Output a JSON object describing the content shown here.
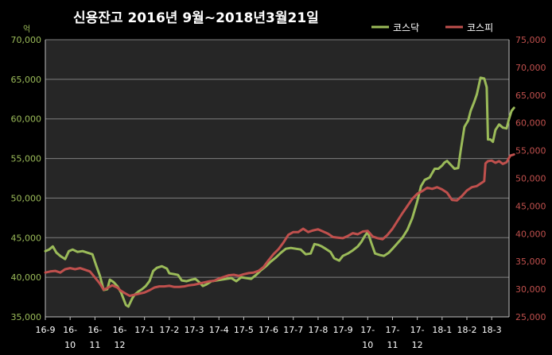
{
  "chart_data": {
    "type": "line",
    "title": "신용잔고 2016년 9월~2018년3월21일",
    "y_unit_label": "억",
    "legend_position": "top-right",
    "grid": true,
    "ylim_left": [
      35000,
      70000
    ],
    "ylim_right": [
      25000,
      75000
    ],
    "yticks_left": [
      "35,000",
      "40,000",
      "45,000",
      "50,000",
      "55,000",
      "60,000",
      "65,000",
      "70,000"
    ],
    "yticks_right": [
      "25,000",
      "30,000",
      "35,000",
      "40,000",
      "45,000",
      "50,000",
      "55,000",
      "60,000",
      "65,000",
      "70,000",
      "75,000"
    ],
    "x_categories": [
      {
        "line1": "16-9",
        "line2": ""
      },
      {
        "line1": "16-",
        "line2": "10"
      },
      {
        "line1": "16-",
        "line2": "11"
      },
      {
        "line1": "16-",
        "line2": "12"
      },
      {
        "line1": "17-1",
        "line2": ""
      },
      {
        "line1": "17-2",
        "line2": ""
      },
      {
        "line1": "17-3",
        "line2": ""
      },
      {
        "line1": "17-4",
        "line2": ""
      },
      {
        "line1": "17-5",
        "line2": ""
      },
      {
        "line1": "17-6",
        "line2": ""
      },
      {
        "line1": "17-7",
        "line2": ""
      },
      {
        "line1": "17-8",
        "line2": ""
      },
      {
        "line1": "17-9",
        "line2": ""
      },
      {
        "line1": "17-",
        "line2": "10"
      },
      {
        "line1": "17-",
        "line2": "11"
      },
      {
        "line1": "17-",
        "line2": "12"
      },
      {
        "line1": "18-1",
        "line2": ""
      },
      {
        "line1": "18-2",
        "line2": ""
      },
      {
        "line1": "18-3",
        "line2": ""
      }
    ],
    "x_range": [
      0,
      18.7
    ],
    "series": [
      {
        "name": "코스닥",
        "axis": "left",
        "color": "#9bbb59",
        "points": [
          [
            0,
            43300
          ],
          [
            0.15,
            43500
          ],
          [
            0.3,
            43900
          ],
          [
            0.45,
            43100
          ],
          [
            0.6,
            42700
          ],
          [
            0.8,
            42300
          ],
          [
            0.95,
            43300
          ],
          [
            1.1,
            43500
          ],
          [
            1.3,
            43200
          ],
          [
            1.5,
            43300
          ],
          [
            1.7,
            43100
          ],
          [
            1.9,
            42900
          ],
          [
            2.05,
            41500
          ],
          [
            2.2,
            40200
          ],
          [
            2.35,
            38400
          ],
          [
            2.5,
            38500
          ],
          [
            2.6,
            39700
          ],
          [
            2.75,
            39400
          ],
          [
            2.9,
            38900
          ],
          [
            3.05,
            38100
          ],
          [
            3.15,
            37300
          ],
          [
            3.25,
            36500
          ],
          [
            3.35,
            36300
          ],
          [
            3.5,
            37300
          ],
          [
            3.6,
            37800
          ],
          [
            3.75,
            38200
          ],
          [
            3.9,
            38500
          ],
          [
            4.05,
            38900
          ],
          [
            4.2,
            39500
          ],
          [
            4.35,
            40800
          ],
          [
            4.5,
            41200
          ],
          [
            4.7,
            41400
          ],
          [
            4.9,
            41100
          ],
          [
            5.0,
            40500
          ],
          [
            5.2,
            40400
          ],
          [
            5.35,
            40300
          ],
          [
            5.5,
            39600
          ],
          [
            5.7,
            39500
          ],
          [
            5.9,
            39700
          ],
          [
            6.05,
            39800
          ],
          [
            6.2,
            39400
          ],
          [
            6.35,
            38900
          ],
          [
            6.5,
            39100
          ],
          [
            6.7,
            39500
          ],
          [
            6.9,
            39600
          ],
          [
            7.1,
            39700
          ],
          [
            7.3,
            39800
          ],
          [
            7.5,
            39900
          ],
          [
            7.7,
            39500
          ],
          [
            7.9,
            40000
          ],
          [
            8.1,
            39900
          ],
          [
            8.3,
            39800
          ],
          [
            8.5,
            40300
          ],
          [
            8.7,
            40900
          ],
          [
            8.9,
            41400
          ],
          [
            9.1,
            42000
          ],
          [
            9.3,
            42500
          ],
          [
            9.5,
            43100
          ],
          [
            9.7,
            43600
          ],
          [
            9.9,
            43700
          ],
          [
            10.1,
            43600
          ],
          [
            10.3,
            43500
          ],
          [
            10.5,
            42900
          ],
          [
            10.7,
            43000
          ],
          [
            10.85,
            44200
          ],
          [
            11.0,
            44100
          ],
          [
            11.15,
            43900
          ],
          [
            11.3,
            43600
          ],
          [
            11.5,
            43200
          ],
          [
            11.65,
            42400
          ],
          [
            11.85,
            42100
          ],
          [
            12.0,
            42700
          ],
          [
            12.2,
            43000
          ],
          [
            12.4,
            43400
          ],
          [
            12.6,
            43900
          ],
          [
            12.75,
            44500
          ],
          [
            12.9,
            45300
          ],
          [
            13.0,
            45700
          ],
          [
            13.15,
            44300
          ],
          [
            13.3,
            43000
          ],
          [
            13.5,
            42800
          ],
          [
            13.65,
            42700
          ],
          [
            13.85,
            43100
          ],
          [
            14.0,
            43600
          ],
          [
            14.2,
            44300
          ],
          [
            14.4,
            45000
          ],
          [
            14.6,
            46000
          ],
          [
            14.8,
            47500
          ],
          [
            15.0,
            49600
          ],
          [
            15.15,
            51500
          ],
          [
            15.3,
            52300
          ],
          [
            15.5,
            52600
          ],
          [
            15.7,
            53700
          ],
          [
            15.85,
            53700
          ],
          [
            16.0,
            54100
          ],
          [
            16.1,
            54500
          ],
          [
            16.2,
            54700
          ],
          [
            16.35,
            54200
          ],
          [
            16.5,
            53700
          ],
          [
            16.65,
            53800
          ],
          [
            16.75,
            56000
          ],
          [
            16.9,
            59000
          ],
          [
            17.05,
            59800
          ],
          [
            17.15,
            61000
          ],
          [
            17.3,
            62200
          ],
          [
            17.4,
            63100
          ],
          [
            17.55,
            65200
          ],
          [
            17.7,
            65100
          ],
          [
            17.8,
            64000
          ],
          [
            17.85,
            57400
          ],
          [
            17.95,
            57400
          ],
          [
            18.05,
            57100
          ],
          [
            18.15,
            58600
          ],
          [
            18.3,
            59300
          ],
          [
            18.45,
            58900
          ],
          [
            18.6,
            58800
          ],
          [
            18.7,
            60000
          ],
          [
            18.8,
            61000
          ],
          [
            18.9,
            61400
          ]
        ]
      },
      {
        "name": "코스피",
        "axis": "right",
        "color": "#c0504d",
        "points": [
          [
            0,
            33000
          ],
          [
            0.2,
            33200
          ],
          [
            0.4,
            33300
          ],
          [
            0.6,
            33000
          ],
          [
            0.8,
            33600
          ],
          [
            1.0,
            33800
          ],
          [
            1.2,
            33600
          ],
          [
            1.4,
            33800
          ],
          [
            1.6,
            33500
          ],
          [
            1.8,
            33200
          ],
          [
            2.0,
            32100
          ],
          [
            2.2,
            31000
          ],
          [
            2.35,
            29900
          ],
          [
            2.5,
            30200
          ],
          [
            2.7,
            30700
          ],
          [
            2.9,
            30300
          ],
          [
            3.05,
            29700
          ],
          [
            3.2,
            29300
          ],
          [
            3.4,
            28800
          ],
          [
            3.6,
            29000
          ],
          [
            3.8,
            29200
          ],
          [
            4.0,
            29400
          ],
          [
            4.2,
            29800
          ],
          [
            4.4,
            30300
          ],
          [
            4.6,
            30500
          ],
          [
            4.8,
            30500
          ],
          [
            5.0,
            30600
          ],
          [
            5.2,
            30400
          ],
          [
            5.4,
            30400
          ],
          [
            5.6,
            30500
          ],
          [
            5.8,
            30700
          ],
          [
            6.0,
            30800
          ],
          [
            6.2,
            31000
          ],
          [
            6.4,
            31200
          ],
          [
            6.6,
            31400
          ],
          [
            6.8,
            31500
          ],
          [
            7.0,
            31900
          ],
          [
            7.2,
            32200
          ],
          [
            7.4,
            32500
          ],
          [
            7.6,
            32600
          ],
          [
            7.8,
            32400
          ],
          [
            8.0,
            32700
          ],
          [
            8.2,
            32900
          ],
          [
            8.4,
            33000
          ],
          [
            8.6,
            33300
          ],
          [
            8.8,
            34000
          ],
          [
            9.0,
            35200
          ],
          [
            9.2,
            36300
          ],
          [
            9.4,
            37200
          ],
          [
            9.6,
            38400
          ],
          [
            9.8,
            39800
          ],
          [
            10.0,
            40300
          ],
          [
            10.2,
            40300
          ],
          [
            10.4,
            40900
          ],
          [
            10.6,
            40300
          ],
          [
            10.8,
            40600
          ],
          [
            11.0,
            40800
          ],
          [
            11.2,
            40400
          ],
          [
            11.4,
            40000
          ],
          [
            11.6,
            39400
          ],
          [
            11.8,
            39300
          ],
          [
            12.0,
            39200
          ],
          [
            12.2,
            39600
          ],
          [
            12.4,
            40100
          ],
          [
            12.6,
            39900
          ],
          [
            12.8,
            40400
          ],
          [
            13.0,
            40500
          ],
          [
            13.2,
            39500
          ],
          [
            13.4,
            39200
          ],
          [
            13.6,
            39000
          ],
          [
            13.8,
            39800
          ],
          [
            14.0,
            40900
          ],
          [
            14.2,
            42300
          ],
          [
            14.4,
            43700
          ],
          [
            14.6,
            45000
          ],
          [
            14.8,
            46300
          ],
          [
            15.0,
            47200
          ],
          [
            15.2,
            47700
          ],
          [
            15.4,
            48300
          ],
          [
            15.6,
            48100
          ],
          [
            15.8,
            48400
          ],
          [
            16.0,
            48000
          ],
          [
            16.2,
            47400
          ],
          [
            16.4,
            46100
          ],
          [
            16.6,
            46000
          ],
          [
            16.8,
            46800
          ],
          [
            17.0,
            47800
          ],
          [
            17.2,
            48400
          ],
          [
            17.4,
            48600
          ],
          [
            17.6,
            49200
          ],
          [
            17.7,
            49500
          ],
          [
            17.75,
            52700
          ],
          [
            17.85,
            53100
          ],
          [
            18.0,
            53200
          ],
          [
            18.15,
            52800
          ],
          [
            18.3,
            53100
          ],
          [
            18.45,
            52600
          ],
          [
            18.6,
            52900
          ],
          [
            18.75,
            54100
          ],
          [
            18.9,
            54300
          ]
        ]
      }
    ]
  }
}
